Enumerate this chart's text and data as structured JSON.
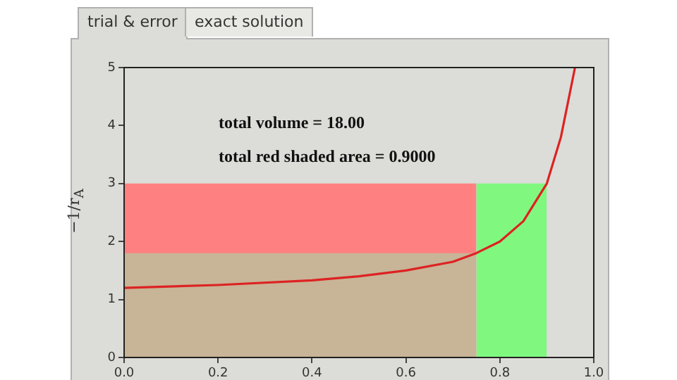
{
  "chart_data": {
    "type": "line",
    "ylabel": "−1/r$_{A}$",
    "annotations": [
      "trial & error",
      "exact solution",
      "total volume = 18.00",
      "total red shaded area = 0.9000"
    ],
    "xlim": [
      0,
      1
    ],
    "xticks": [
      {
        "value": 0,
        "label": "0.0"
      },
      0.2,
      0.4,
      0.6,
      0.8,
      {
        "value": 1,
        "label": "1.0"
      }
    ],
    "ylim": [
      0,
      5
    ],
    "yticks": [
      0,
      1,
      2,
      3,
      4,
      5
    ],
    "grid": false,
    "legend": false,
    "marker": "none",
    "series": [
      {
        "type": "area",
        "color": "#ff8080",
        "x": [
          0,
          0.75
        ],
        "values": [
          3,
          3
        ]
      },
      {
        "type": "area",
        "color": "#c8b496",
        "x": [
          0,
          0.75
        ],
        "values": [
          1.8,
          1.8
        ]
      },
      {
        "type": "area",
        "color": "#80f880",
        "x": [
          0.75,
          0.9
        ],
        "values": [
          3,
          3
        ]
      },
      {
        "type": "line",
        "color": "#dd2222",
        "x": [
          0,
          0.2,
          0.4,
          0.5,
          0.6,
          0.7,
          0.75,
          0.8,
          0.85,
          0.9,
          0.93,
          0.96
        ],
        "values": [
          1.2,
          1.25,
          1.33,
          1.4,
          1.5,
          1.65,
          1.8,
          2.0,
          2.35,
          3.0,
          3.8,
          5
        ]
      }
    ]
  }
}
